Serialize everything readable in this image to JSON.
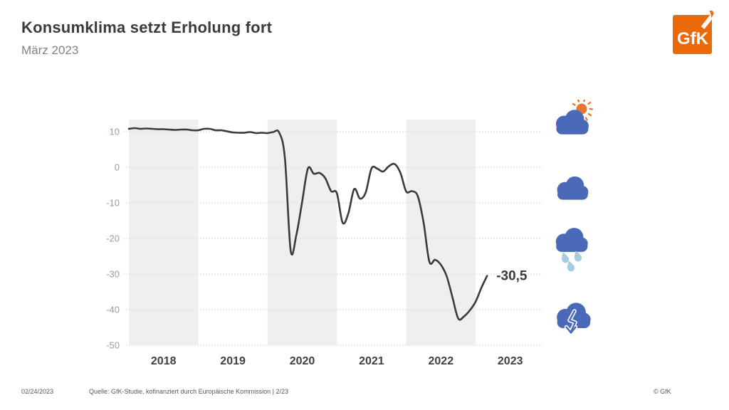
{
  "header": {
    "title": "Konsumklima setzt Erholung fort",
    "subtitle": "März 2023",
    "logo_text": "GfK"
  },
  "footer": {
    "date": "02/24/2023",
    "source": "Quelle: GfK-Studie, kofinanziert durch Europäische Kommission | 2/23",
    "copyright": "© GfK"
  },
  "icons": [
    {
      "name": "sun-behind-cloud-icon"
    },
    {
      "name": "cloud-icon"
    },
    {
      "name": "rain-cloud-icon"
    },
    {
      "name": "cloud-down-arrow-icon"
    }
  ],
  "colors": {
    "cloud_blue": "#4a69b8",
    "sun_orange": "#e8762c",
    "drop_blue": "#a7cede",
    "logo_orange": "#eb6909",
    "title_gray": "#3b3b3b"
  },
  "chart_data": {
    "type": "line",
    "title": "Konsumklima setzt Erholung fort",
    "xlabel": "",
    "ylabel": "",
    "x_years": [
      "2018",
      "2019",
      "2020",
      "2021",
      "2022",
      "2023"
    ],
    "shaded_year_indices": [
      0,
      2,
      4
    ],
    "y_ticks": [
      10,
      0,
      -10,
      -20,
      -30,
      -40,
      -50
    ],
    "ylim": [
      -50,
      13.4
    ],
    "grid": "horizontal-only",
    "legend": "none",
    "x_start": "2018-01",
    "x_end": "2023-03",
    "months_per_point": 1,
    "series": [
      {
        "name": "Konsumklima",
        "values": [
          10.8,
          11.0,
          10.8,
          10.9,
          10.8,
          10.7,
          10.7,
          10.6,
          10.5,
          10.6,
          10.6,
          10.4,
          10.4,
          10.8,
          10.8,
          10.4,
          10.4,
          10.1,
          9.8,
          9.7,
          9.7,
          9.9,
          9.6,
          9.7,
          9.6,
          9.9,
          9.8,
          2.7,
          -23.4,
          -18.9,
          -9.6,
          -0.3,
          -1.8,
          -1.6,
          -3.1,
          -6.7,
          -7.3,
          -15.6,
          -12.9,
          -6.1,
          -8.8,
          -7.0,
          -0.3,
          -0.4,
          -1.2,
          0.3,
          0.9,
          -1.6,
          -6.8,
          -6.7,
          -8.1,
          -15.5,
          -26.5,
          -26.0,
          -27.4,
          -30.6,
          -36.5,
          -42.5,
          -41.9,
          -40.2,
          -37.8,
          -33.9,
          -30.5
        ]
      }
    ],
    "end_label": "-30,5",
    "end_value": -30.5,
    "line_color": "#3b3b3b",
    "band_color": "#efefef",
    "grid_color": "#f1ddcf",
    "tick_color": "#8d9dae"
  }
}
